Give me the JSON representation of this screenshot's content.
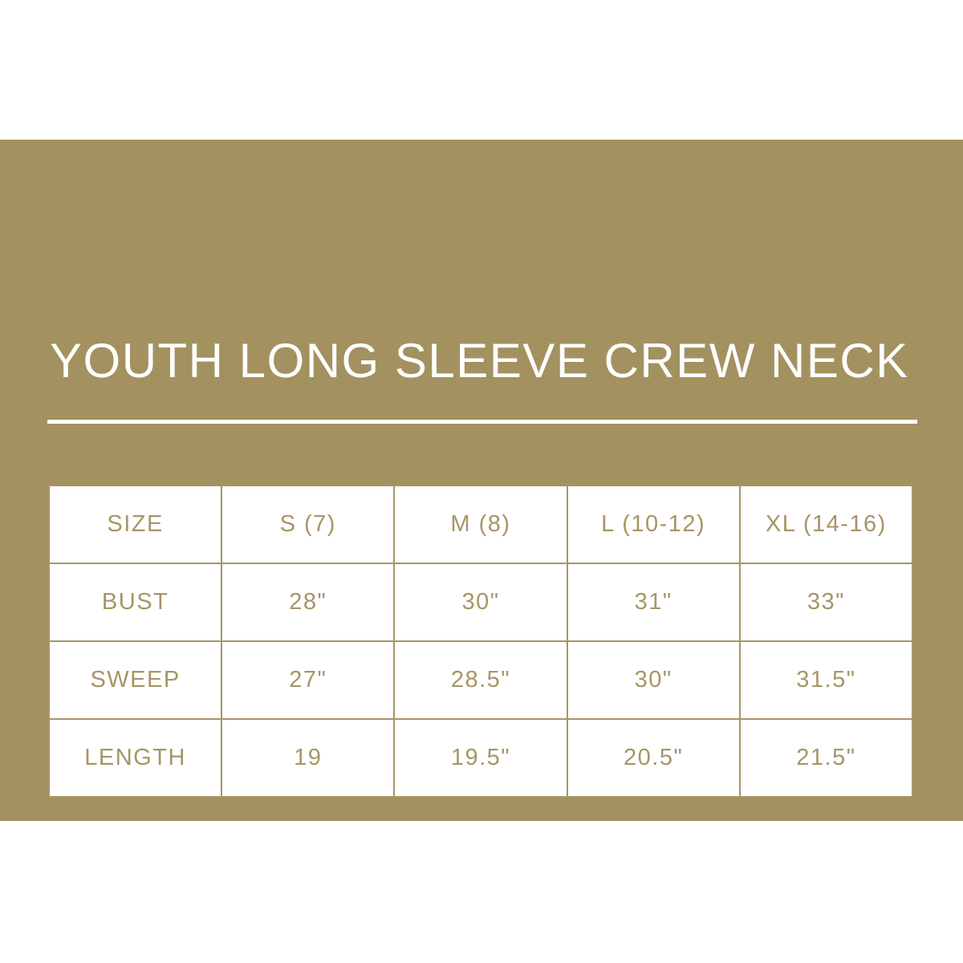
{
  "page": {
    "kind": "product size chart graphic"
  },
  "colors": {
    "page_background": "#ffffff",
    "panel_background": "#a39160",
    "title_text": "#ffffff",
    "divider": "#ffffff",
    "table_cell_background": "#ffffff",
    "table_border": "#a79566",
    "table_text": "#a79566"
  },
  "chart_data": {
    "type": "table",
    "title": "YOUTH LONG SLEEVE CREW NECK",
    "columns": [
      "SIZE",
      "S (7)",
      "M (8)",
      "L (10-12)",
      "XL (14-16)"
    ],
    "rows": [
      [
        "BUST",
        "28\"",
        "30\"",
        "31\"",
        "33\""
      ],
      [
        "SWEEP",
        "27\"",
        "28.5\"",
        "30\"",
        "31.5\""
      ],
      [
        "LENGTH",
        "19",
        "19.5\"",
        "20.5\"",
        "21.5\""
      ]
    ]
  }
}
